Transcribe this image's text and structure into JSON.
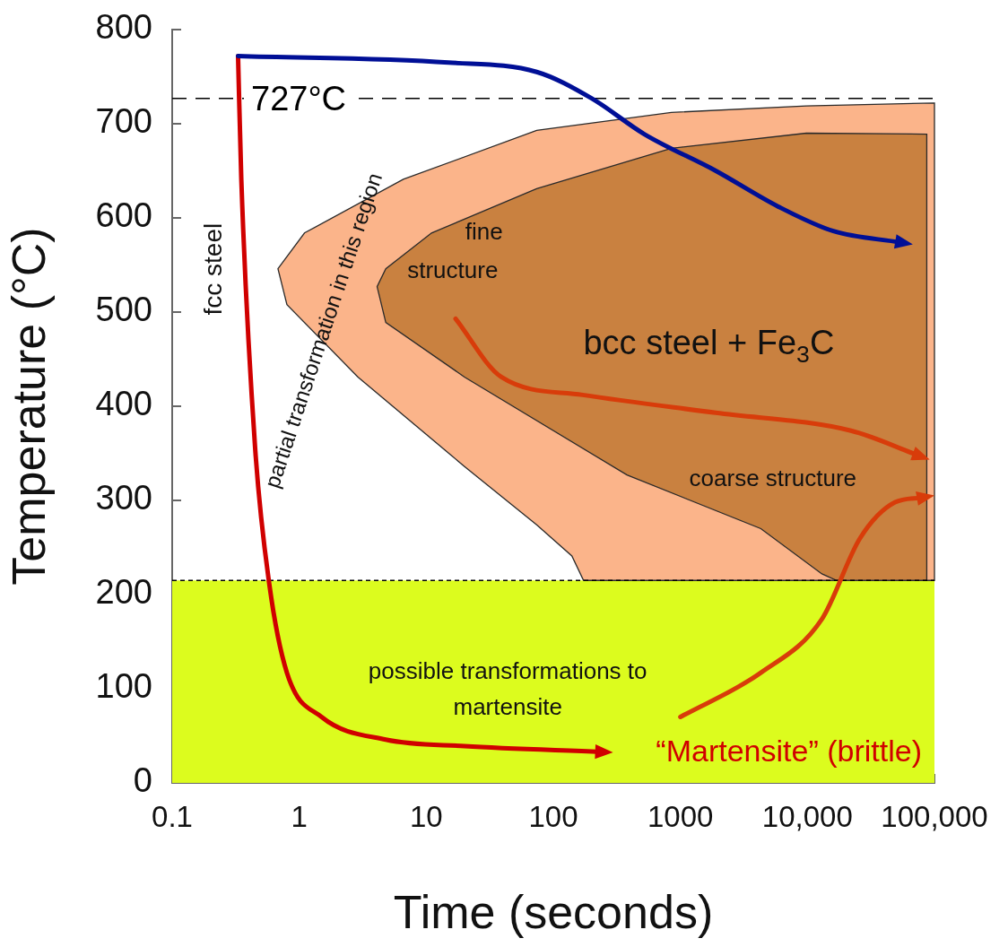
{
  "chart_data": {
    "type": "line",
    "xlabel": "Time (seconds)",
    "ylabel": "Temperature (°C)",
    "log": "x",
    "xlim": [
      0.1,
      100000
    ],
    "xticks": [
      0.1,
      1,
      10,
      100,
      1000,
      {
        "value": 10000,
        "label": "10,000"
      },
      {
        "value": 100000,
        "label": "100,000"
      }
    ],
    "ylim": [
      0,
      800
    ],
    "yticks": [
      0,
      100,
      200,
      300,
      400,
      500,
      600,
      700,
      800
    ],
    "grid": false,
    "legend": false,
    "series": [
      {
        "type": "area",
        "color": "#fbb48a",
        "x": [
          100000,
          9800,
          850,
          74,
          6.6,
          1.1,
          0.68,
          0.8,
          2.9,
          20,
          74,
          140,
          173,
          100000
        ],
        "values": [
          722,
          719,
          712,
          693,
          641,
          584,
          546,
          508,
          431,
          336,
          274,
          241,
          215,
          215
        ]
      },
      {
        "type": "area",
        "color": "#c98140",
        "x": [
          87000,
          9800,
          850,
          74,
          11,
          4.8,
          4.1,
          4.8,
          20,
          380,
          4300,
          13000,
          17000,
          87000
        ],
        "values": [
          689,
          690,
          674,
          631,
          584,
          546,
          527,
          489,
          431,
          327,
          270,
          222,
          215,
          215
        ]
      },
      {
        "type": "line",
        "color": "#000f96",
        "x": [
          0.33,
          15,
          74,
          200,
          520,
          1900,
          5900,
          16000,
          54000
        ],
        "values": [
          772,
          765,
          755,
          727,
          689,
          650,
          612,
          586,
          574
        ]
      },
      {
        "type": "line",
        "color": "#d00000",
        "x": [
          0.33,
          0.35,
          0.45,
          0.58,
          0.8,
          1.5,
          4.8,
          20,
          235
        ],
        "values": [
          772,
          641,
          355,
          212,
          117,
          70,
          46,
          39,
          33
        ]
      },
      {
        "type": "line",
        "color": "#d83c0a",
        "x": [
          17,
          39,
          170,
          1900,
          22000,
          74000
        ],
        "values": [
          493,
          431,
          412,
          393,
          374,
          348
        ]
      },
      {
        "type": "line",
        "color": "#d83c0a",
        "x": [
          1000,
          4300,
          13000,
          26000,
          49000,
          80000
        ],
        "values": [
          70,
          117,
          174,
          260,
          298,
          303
        ]
      }
    ],
    "ref_lines": [
      {
        "axis": "y",
        "value": 727,
        "label": "727°C",
        "line_style": "dashed"
      },
      {
        "axis": "y",
        "value": 215,
        "line_style": "dotted"
      }
    ],
    "bands": [
      {
        "axis": "y",
        "from": 0,
        "to": 215,
        "label": "possible transformations to martensite",
        "color": "#dcfc1e"
      }
    ],
    "annotations": [
      "fcc steel",
      "partial transformation in this region",
      "fine",
      "structure",
      "bcc steel + Fe$_{3}$C",
      "coarse structure",
      "“Martensite” (brittle)"
    ]
  }
}
